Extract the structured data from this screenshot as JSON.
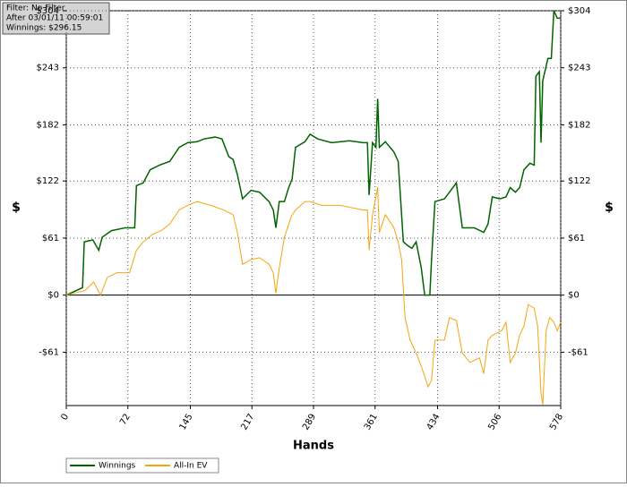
{
  "chart_data": {
    "type": "line",
    "annotations": [
      "Filter: No Filter",
      "After 03/01/11 00:59:01",
      "Winnings: $296.15"
    ],
    "x_label": "Hands",
    "y_label": "$",
    "xlim": [
      0,
      578
    ],
    "xticks": [
      0,
      72,
      145,
      217,
      289,
      361,
      434,
      506,
      578
    ],
    "ylim": [
      -118,
      304
    ],
    "yticks": [
      {
        "value": -61,
        "label": "-$61"
      },
      {
        "value": 0,
        "label": "$0"
      },
      {
        "value": 61,
        "label": "$61"
      },
      {
        "value": 122,
        "label": "$122"
      },
      {
        "value": 182,
        "label": "$182"
      },
      {
        "value": 243,
        "label": "$243"
      },
      {
        "value": 304,
        "label": "$304"
      }
    ],
    "grid": true,
    "legend": "bottom-left",
    "series": [
      {
        "name": "Winnings",
        "color": "#006400",
        "x": [
          0,
          19,
          21,
          31,
          38,
          42,
          53,
          69,
          80,
          82,
          90,
          98,
          109,
          121,
          132,
          142,
          153,
          161,
          174,
          182,
          190,
          195,
          200,
          206,
          216,
          226,
          237,
          242,
          245,
          249,
          255,
          260,
          264,
          268,
          279,
          285,
          294,
          310,
          331,
          347,
          352,
          354,
          358,
          362,
          364,
          366,
          373,
          383,
          388,
          392,
          394,
          399,
          404,
          409,
          415,
          419,
          425,
          427,
          431,
          442,
          448,
          456,
          463,
          477,
          488,
          493,
          498,
          507,
          514,
          519,
          525,
          530,
          535,
          542,
          547,
          549,
          553,
          555,
          557,
          563,
          567,
          570,
          574,
          578
        ],
        "values": [
          0,
          8,
          57,
          59,
          48,
          62,
          69,
          72,
          72,
          117,
          120,
          134,
          139,
          143,
          158,
          163,
          164,
          167,
          169,
          167,
          148,
          145,
          129,
          103,
          112,
          110,
          100,
          91,
          72,
          100,
          100,
          115,
          124,
          158,
          164,
          172,
          167,
          163,
          165,
          163,
          163,
          107,
          163,
          158,
          210,
          158,
          164,
          153,
          143,
          86,
          57,
          53,
          50,
          57,
          29,
          0,
          0,
          38,
          100,
          103,
          110,
          120,
          72,
          72,
          67,
          76,
          105,
          103,
          105,
          115,
          110,
          115,
          134,
          141,
          139,
          234,
          239,
          163,
          229,
          253,
          253,
          304,
          296,
          296.15
        ]
      },
      {
        "name": "All-In EV",
        "color": "#f5a40f",
        "x": [
          0,
          22,
          32,
          40,
          48,
          59,
          74,
          82,
          90,
          101,
          111,
          121,
          132,
          142,
          153,
          169,
          184,
          195,
          200,
          206,
          216,
          226,
          237,
          242,
          245,
          249,
          255,
          263,
          268,
          279,
          285,
          299,
          320,
          347,
          352,
          354,
          358,
          364,
          366,
          373,
          383,
          388,
          392,
          396,
          402,
          409,
          415,
          423,
          427,
          431,
          442,
          448,
          456,
          463,
          472,
          483,
          488,
          493,
          498,
          509,
          514,
          519,
          525,
          530,
          535,
          540,
          547,
          551,
          555,
          557,
          561,
          565,
          570,
          574,
          578
        ],
        "values": [
          0,
          5,
          14,
          0,
          19,
          24,
          24,
          48,
          57,
          65,
          69,
          76,
          91,
          96,
          100,
          96,
          91,
          86,
          67,
          33,
          38,
          40,
          33,
          24,
          2,
          29,
          62,
          84,
          91,
          100,
          100,
          96,
          96,
          91,
          91,
          48,
          86,
          115,
          67,
          86,
          72,
          57,
          38,
          -24,
          -48,
          -62,
          -76,
          -98,
          -91,
          -48,
          -48,
          -24,
          -27,
          -62,
          -72,
          -67,
          -84,
          -48,
          -43,
          -38,
          -29,
          -72,
          -62,
          -43,
          -33,
          -10,
          -14,
          -33,
          -105,
          -117,
          -38,
          -24,
          -29,
          -38,
          -29
        ]
      }
    ]
  }
}
